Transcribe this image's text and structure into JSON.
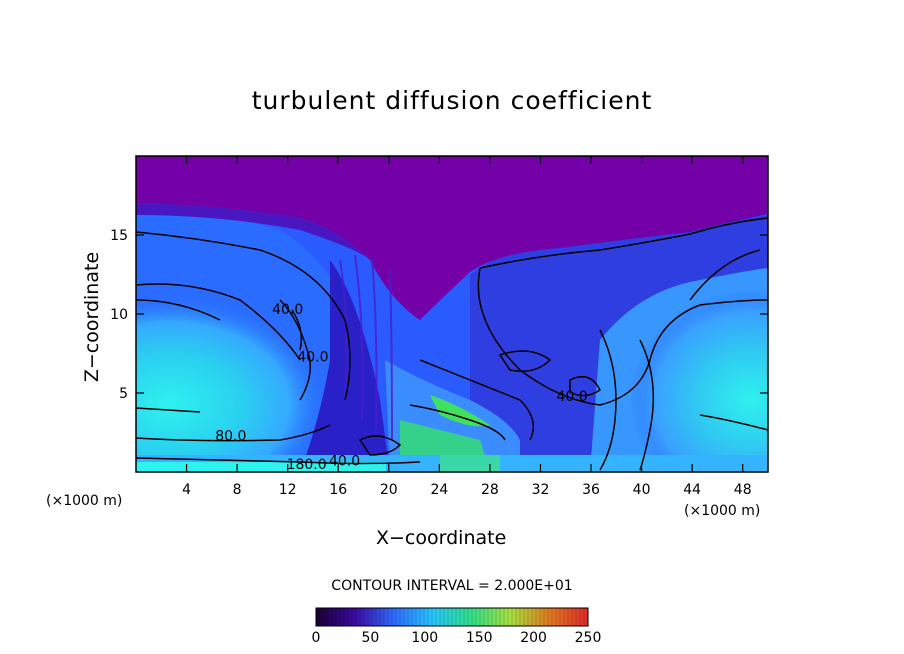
{
  "chart_data": {
    "type": "heatmap",
    "title": "turbulent diffusion coefficient",
    "xlabel": "X−coordinate",
    "ylabel": "Z−coordinate",
    "x_unit": "(×1000 m)",
    "y_unit": "(×1000 m)",
    "xlim": [
      0,
      50
    ],
    "ylim": [
      0,
      20
    ],
    "x_ticks": [
      4,
      8,
      12,
      16,
      20,
      24,
      28,
      32,
      36,
      40,
      44,
      48
    ],
    "y_ticks": [
      5,
      10,
      15
    ],
    "contour_interval_label": "CONTOUR INTERVAL = 2.000E+01",
    "contour_labels": [
      {
        "text": "80.0",
        "x": 7.5,
        "z": 2.0
      },
      {
        "text": "40.0",
        "x": 14.0,
        "z": 7.0
      },
      {
        "text": "40.0",
        "x": 12.0,
        "z": 10.0
      },
      {
        "text": "180.0",
        "x": 13.5,
        "z": 0.2
      },
      {
        "text": "40.0",
        "x": 16.5,
        "z": 0.4
      },
      {
        "text": "40.0",
        "x": 34.5,
        "z": 4.5
      }
    ],
    "colorbar": {
      "ticks": [
        0,
        50,
        100,
        150,
        200,
        250
      ],
      "range": [
        0,
        250
      ],
      "colors": [
        "#1a0033",
        "#3b0aa0",
        "#2f6bff",
        "#26c6ff",
        "#30e08a",
        "#a8e040",
        "#e07b20",
        "#e02a2a"
      ]
    }
  },
  "field_colors": {
    "top": "#7400a8",
    "upper_band": "#3a1fd2",
    "mid_blue": "#2a5bff",
    "light_blue": "#35a9ff",
    "cyan": "#2ef2ee",
    "green": "#38e07a"
  }
}
